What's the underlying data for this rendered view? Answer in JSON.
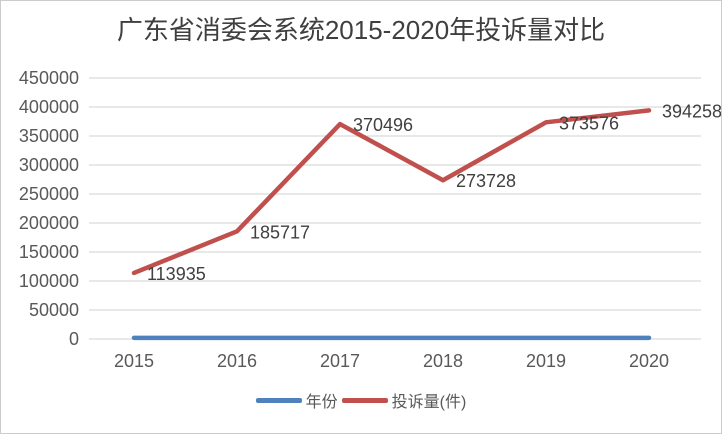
{
  "frame": {
    "border_color": "#cccccc",
    "background": "#ffffff"
  },
  "chart_data": {
    "type": "line",
    "title": "广东省消委会系统2015-2020年投诉量对比",
    "categories": [
      "2015",
      "2016",
      "2017",
      "2018",
      "2019",
      "2020"
    ],
    "series": [
      {
        "name": "年份",
        "values": [
          2015,
          2016,
          2017,
          2018,
          2019,
          2020
        ],
        "color": "#4F81BD",
        "show_data_labels": false
      },
      {
        "name": "投诉量(件)",
        "values": [
          113935,
          185717,
          370496,
          273728,
          373576,
          394258
        ],
        "color": "#C0504D",
        "show_data_labels": true
      }
    ],
    "xlabel": "",
    "ylabel": "",
    "ylim": [
      0,
      450000
    ],
    "ytick_step": 50000,
    "ytick_labels": [
      "0",
      "50000",
      "100000",
      "150000",
      "200000",
      "250000",
      "300000",
      "350000",
      "400000",
      "450000"
    ],
    "grid": "horizontal-only",
    "legend_position": "bottom",
    "colors": {
      "gridline": "#d9d9d9",
      "axis_text": "#595959",
      "data_label_text": "#404040",
      "title_text": "#3f3f3f"
    }
  }
}
